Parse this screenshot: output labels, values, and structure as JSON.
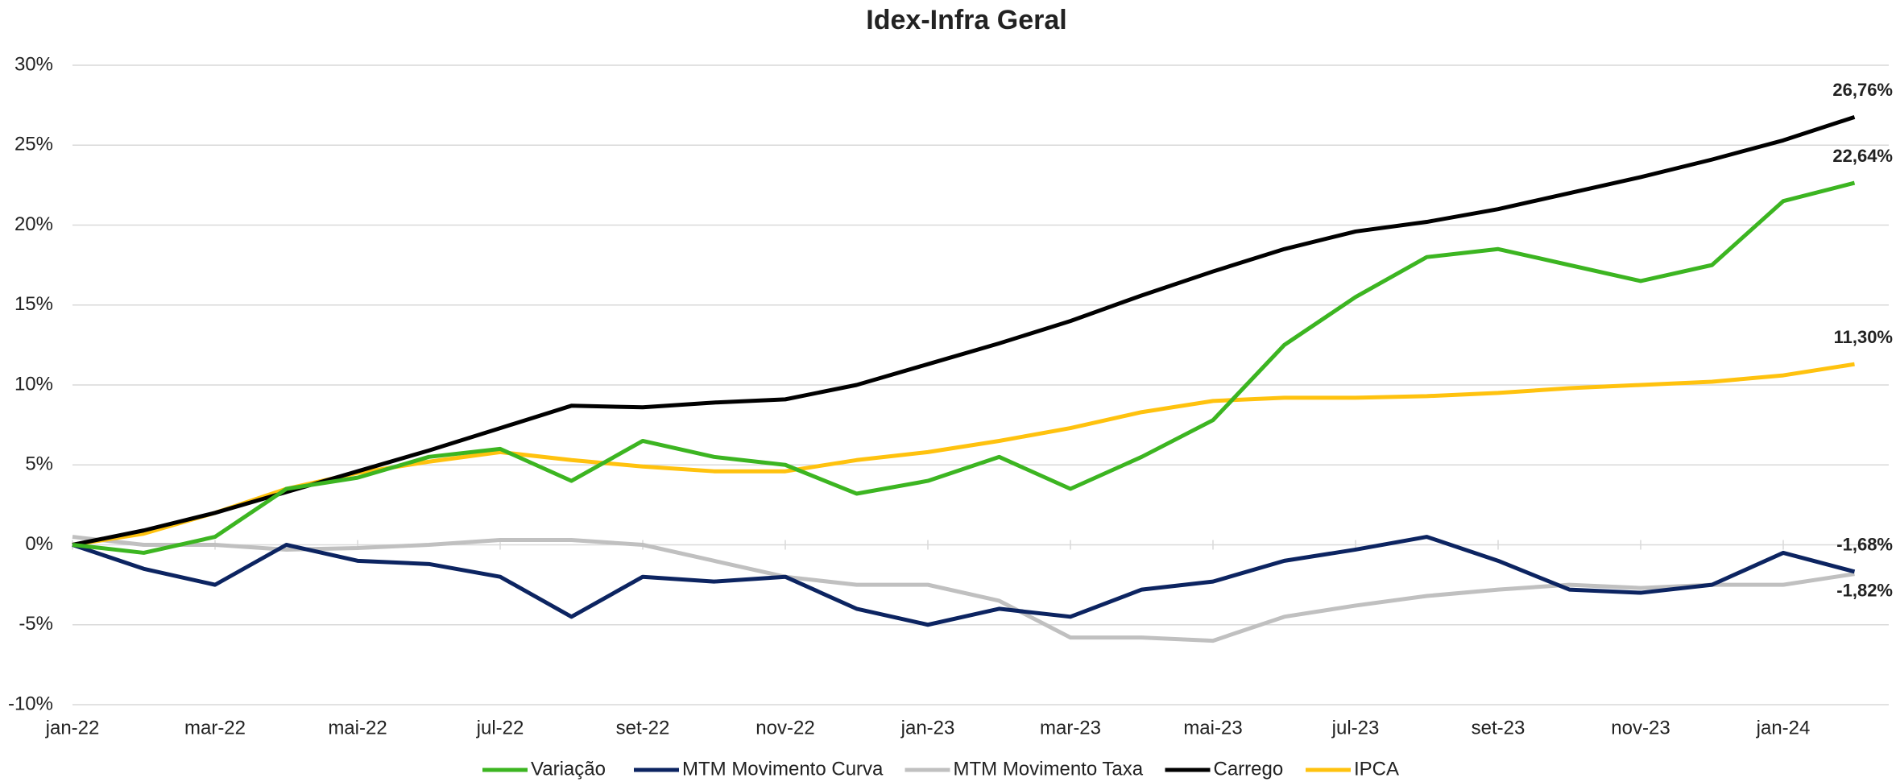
{
  "chart_data": {
    "type": "line",
    "title": "Idex-Infra Geral",
    "categories": [
      "jan-22",
      null,
      "mar-22",
      null,
      "mai-22",
      null,
      "jul-22",
      null,
      "set-22",
      null,
      "nov-22",
      null,
      "jan-23",
      null,
      "mar-23",
      null,
      "mai-23",
      null,
      "jul-23",
      null,
      "set-23",
      null,
      "nov-23",
      null,
      "jan-24",
      null
    ],
    "series": [
      {
        "name": "Variação",
        "color": "#3cb521",
        "values": [
          0,
          -0.5,
          0.5,
          3.5,
          4.2,
          5.5,
          6.0,
          4.0,
          6.5,
          5.5,
          5.0,
          3.2,
          4.0,
          5.5,
          3.5,
          5.5,
          7.8,
          12.5,
          15.5,
          18.0,
          18.5,
          17.5,
          16.5,
          17.5,
          21.5,
          22.64
        ],
        "value_labels": [
          null,
          null,
          null,
          null,
          null,
          null,
          null,
          null,
          null,
          null,
          null,
          null,
          null,
          null,
          null,
          null,
          null,
          null,
          null,
          null,
          null,
          null,
          null,
          null,
          null,
          "22,64%"
        ]
      },
      {
        "name": "MTM Movimento Curva",
        "color": "#0c2461",
        "values": [
          0,
          -1.5,
          -2.5,
          0,
          -1.0,
          -1.2,
          -2.0,
          -4.5,
          -2.0,
          -2.3,
          -2.0,
          -4.0,
          -5.0,
          -4.0,
          -4.5,
          -2.8,
          -2.3,
          -1.0,
          -0.3,
          0.5,
          -1.0,
          -2.8,
          -3.0,
          -2.5,
          -0.5,
          -1.68
        ],
        "value_labels": [
          null,
          null,
          null,
          null,
          null,
          null,
          null,
          null,
          null,
          null,
          null,
          null,
          null,
          null,
          null,
          null,
          null,
          null,
          null,
          null,
          null,
          null,
          null,
          null,
          null,
          "-1,68%"
        ]
      },
      {
        "name": "MTM Movimento Taxa",
        "color": "#c0c0c0",
        "values": [
          0.5,
          0,
          0,
          -0.3,
          -0.2,
          0,
          0.3,
          0.3,
          0,
          -1.0,
          -2.0,
          -2.5,
          -2.5,
          -3.5,
          -5.8,
          -5.8,
          -6.0,
          -4.5,
          -3.8,
          -3.2,
          -2.8,
          -2.5,
          -2.7,
          -2.5,
          -2.5,
          -1.82
        ],
        "value_labels": [
          null,
          null,
          null,
          null,
          null,
          null,
          null,
          null,
          null,
          null,
          null,
          null,
          null,
          null,
          null,
          null,
          null,
          null,
          null,
          null,
          null,
          null,
          null,
          null,
          null,
          "-1,82%"
        ]
      },
      {
        "name": "Carrego",
        "color": "#000000",
        "values": [
          0,
          0.9,
          2.0,
          3.3,
          4.6,
          5.9,
          7.3,
          8.7,
          8.6,
          8.9,
          9.1,
          10.0,
          11.3,
          12.6,
          14.0,
          15.6,
          17.1,
          18.5,
          19.6,
          20.2,
          21.0,
          22.0,
          23.0,
          24.1,
          25.3,
          26.76
        ],
        "value_labels": [
          null,
          null,
          null,
          null,
          null,
          null,
          null,
          null,
          null,
          null,
          null,
          null,
          null,
          null,
          null,
          null,
          null,
          null,
          null,
          null,
          null,
          null,
          null,
          null,
          null,
          "26,76%"
        ]
      },
      {
        "name": "IPCA",
        "color": "#ffc20e",
        "values": [
          0,
          0.7,
          2.0,
          3.5,
          4.5,
          5.2,
          5.8,
          5.3,
          4.9,
          4.6,
          4.6,
          5.3,
          5.8,
          6.5,
          7.3,
          8.3,
          9.0,
          9.2,
          9.2,
          9.3,
          9.5,
          9.8,
          10.0,
          10.2,
          10.6,
          11.3
        ],
        "value_labels": [
          null,
          null,
          null,
          null,
          null,
          null,
          null,
          null,
          null,
          null,
          null,
          null,
          null,
          null,
          null,
          null,
          null,
          null,
          null,
          null,
          null,
          null,
          null,
          null,
          null,
          "11,30%"
        ]
      }
    ],
    "ylim": [
      -10,
      30
    ],
    "yticks": [
      {
        "value": -10,
        "label": "-10%"
      },
      {
        "value": -5,
        "label": "-5%"
      },
      {
        "value": 0,
        "label": "0%"
      },
      {
        "value": 5,
        "label": "5%"
      },
      {
        "value": 10,
        "label": "10%"
      },
      {
        "value": 15,
        "label": "15%"
      },
      {
        "value": 20,
        "label": "20%"
      },
      {
        "value": 25,
        "label": "25%"
      },
      {
        "value": 30,
        "label": "30%"
      }
    ],
    "grid": true,
    "legend": "bottom"
  }
}
